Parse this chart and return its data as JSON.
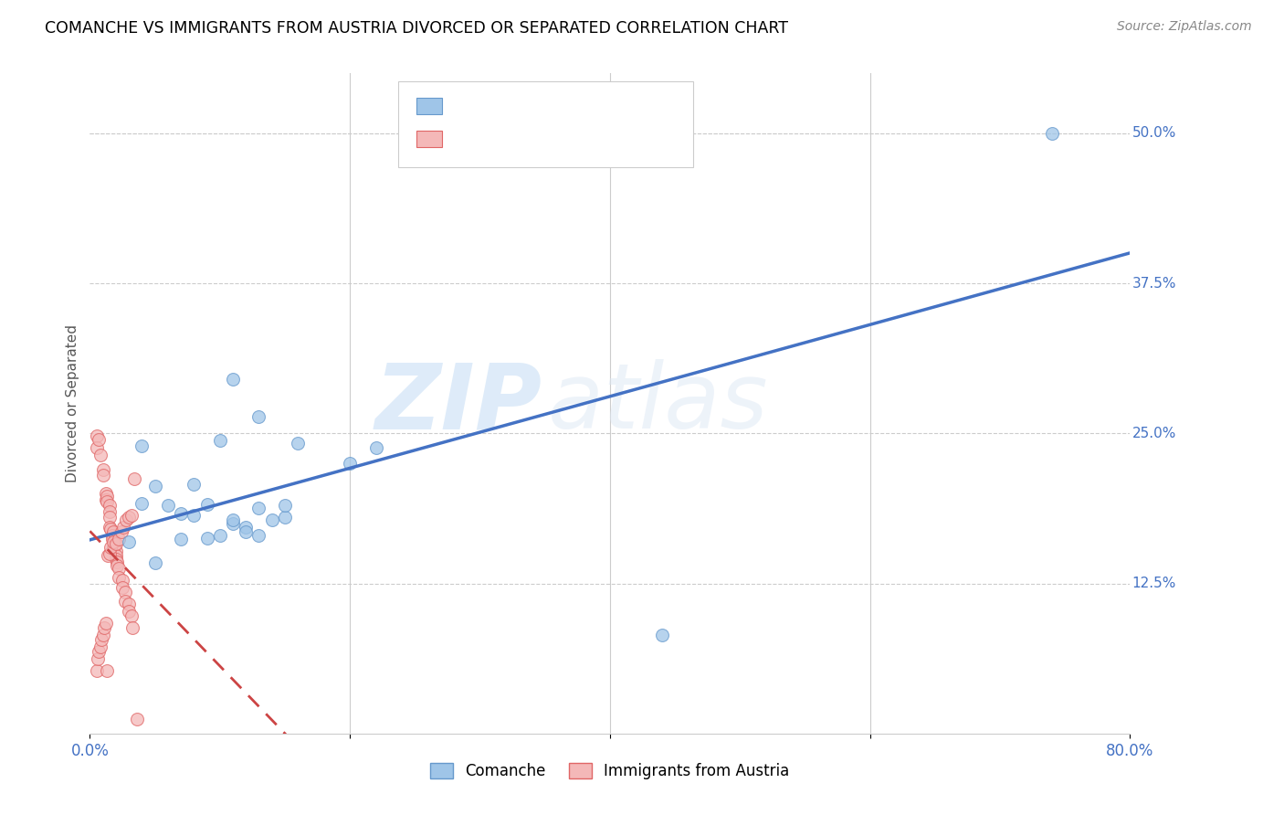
{
  "title": "COMANCHE VS IMMIGRANTS FROM AUSTRIA DIVORCED OR SEPARATED CORRELATION CHART",
  "source": "Source: ZipAtlas.com",
  "ylabel": "Divorced or Separated",
  "xlim": [
    0.0,
    0.8
  ],
  "ylim": [
    0.0,
    0.55
  ],
  "ytick_positions": [
    0.125,
    0.25,
    0.375,
    0.5
  ],
  "ytick_labels": [
    "12.5%",
    "25.0%",
    "37.5%",
    "50.0%"
  ],
  "color_blue": "#9fc5e8",
  "color_pink": "#f4b8b8",
  "color_blue_line": "#4472c4",
  "color_pink_line": "#cc4444",
  "watermark_zip": "ZIP",
  "watermark_atlas": "atlas",
  "comanche_x": [
    0.74,
    0.04,
    0.11,
    0.13,
    0.1,
    0.16,
    0.2,
    0.08,
    0.05,
    0.04,
    0.06,
    0.07,
    0.08,
    0.09,
    0.11,
    0.12,
    0.13,
    0.03,
    0.05,
    0.22,
    0.07,
    0.09,
    0.1,
    0.11,
    0.13,
    0.14,
    0.15,
    0.12,
    0.44,
    0.15
  ],
  "comanche_y": [
    0.5,
    0.24,
    0.295,
    0.264,
    0.244,
    0.242,
    0.225,
    0.208,
    0.206,
    0.192,
    0.19,
    0.183,
    0.182,
    0.191,
    0.175,
    0.172,
    0.165,
    0.16,
    0.142,
    0.238,
    0.162,
    0.163,
    0.165,
    0.178,
    0.188,
    0.178,
    0.18,
    0.168,
    0.082,
    0.19
  ],
  "austria_x": [
    0.005,
    0.005,
    0.007,
    0.008,
    0.01,
    0.01,
    0.012,
    0.012,
    0.013,
    0.013,
    0.015,
    0.015,
    0.015,
    0.015,
    0.016,
    0.017,
    0.017,
    0.018,
    0.018,
    0.019,
    0.019,
    0.02,
    0.02,
    0.02,
    0.021,
    0.021,
    0.022,
    0.022,
    0.025,
    0.025,
    0.027,
    0.027,
    0.03,
    0.03,
    0.032,
    0.033,
    0.005,
    0.006,
    0.007,
    0.008,
    0.009,
    0.01,
    0.011,
    0.012,
    0.013,
    0.014,
    0.015,
    0.016,
    0.018,
    0.02,
    0.022,
    0.024,
    0.026,
    0.028,
    0.03,
    0.032,
    0.034,
    0.036
  ],
  "austria_y": [
    0.248,
    0.238,
    0.245,
    0.232,
    0.22,
    0.215,
    0.2,
    0.195,
    0.198,
    0.193,
    0.19,
    0.185,
    0.18,
    0.172,
    0.17,
    0.165,
    0.162,
    0.168,
    0.155,
    0.155,
    0.16,
    0.152,
    0.148,
    0.145,
    0.143,
    0.14,
    0.138,
    0.13,
    0.128,
    0.122,
    0.118,
    0.11,
    0.108,
    0.102,
    0.098,
    0.088,
    0.052,
    0.062,
    0.068,
    0.072,
    0.078,
    0.082,
    0.088,
    0.092,
    0.052,
    0.148,
    0.15,
    0.155,
    0.16,
    0.158,
    0.162,
    0.168,
    0.172,
    0.178,
    0.18,
    0.182,
    0.212,
    0.012
  ]
}
